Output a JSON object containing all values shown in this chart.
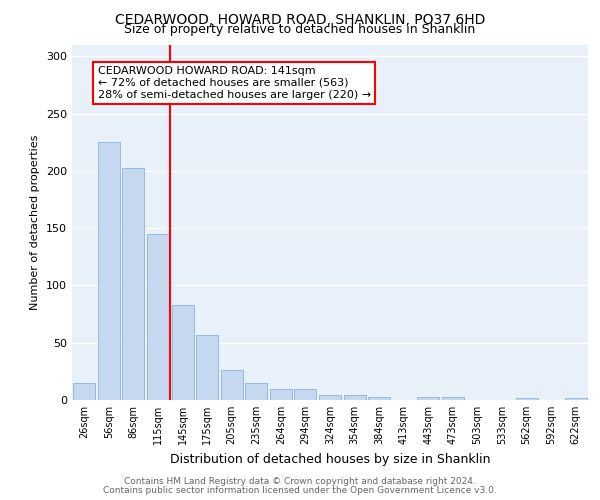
{
  "title_line1": "CEDARWOOD, HOWARD ROAD, SHANKLIN, PO37 6HD",
  "title_line2": "Size of property relative to detached houses in Shanklin",
  "xlabel": "Distribution of detached houses by size in Shanklin",
  "ylabel": "Number of detached properties",
  "footer1": "Contains HM Land Registry data © Crown copyright and database right 2024.",
  "footer2": "Contains public sector information licensed under the Open Government Licence v3.0.",
  "annotation_line1": "CEDARWOOD HOWARD ROAD: 141sqm",
  "annotation_line2": "← 72% of detached houses are smaller (563)",
  "annotation_line3": "28% of semi-detached houses are larger (220) →",
  "bar_color": "#c5d8f0",
  "bar_edge_color": "#8ab4d8",
  "marker_color": "red",
  "background_color": "#e8f0fa",
  "grid_color": "#ffffff",
  "categories": [
    "26sqm",
    "56sqm",
    "86sqm",
    "115sqm",
    "145sqm",
    "175sqm",
    "205sqm",
    "235sqm",
    "264sqm",
    "294sqm",
    "324sqm",
    "354sqm",
    "384sqm",
    "413sqm",
    "443sqm",
    "473sqm",
    "503sqm",
    "533sqm",
    "562sqm",
    "592sqm",
    "622sqm"
  ],
  "values": [
    15,
    225,
    203,
    145,
    83,
    57,
    26,
    15,
    10,
    10,
    4,
    4,
    3,
    0,
    3,
    3,
    0,
    0,
    2,
    0,
    2
  ],
  "ylim": [
    0,
    310
  ],
  "yticks": [
    0,
    50,
    100,
    150,
    200,
    250,
    300
  ],
  "marker_bar_index": 4,
  "title_fontsize": 10,
  "subtitle_fontsize": 9,
  "ylabel_fontsize": 8,
  "xlabel_fontsize": 9,
  "tick_fontsize": 7,
  "footer_fontsize": 6.5,
  "annotation_fontsize": 8
}
